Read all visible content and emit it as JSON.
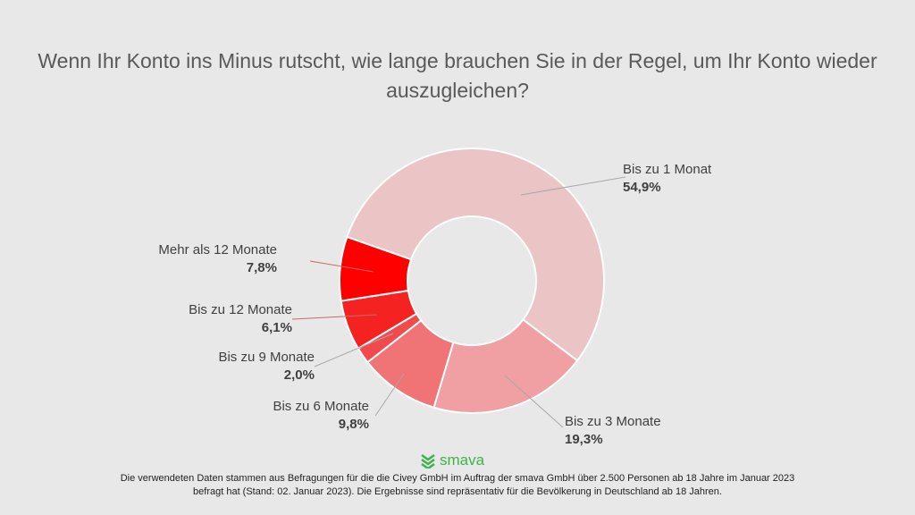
{
  "chart_data": {
    "type": "pie",
    "variant": "donut",
    "title": "Wenn Ihr Konto ins Minus rutscht, wie lange brauchen Sie in der Regel, um Ihr Konto wieder auszugleichen?",
    "categories": [
      "Bis zu 1 Monat",
      "Bis zu 3 Monate",
      "Bis zu 6 Monate",
      "Bis zu 9 Monate",
      "Bis zu 12 Monate",
      "Mehr als 12 Monate"
    ],
    "values": [
      54.9,
      19.3,
      9.8,
      2.0,
      6.1,
      7.8
    ],
    "value_labels": [
      "54,9%",
      "19,3%",
      "9,8%",
      "2,0%",
      "6,1%",
      "7,8%"
    ],
    "colors": [
      "#ebc4c5",
      "#f0a0a2",
      "#f07375",
      "#f2494c",
      "#f52222",
      "#ff0000"
    ],
    "unit": "%"
  },
  "logo": {
    "text": "smava",
    "color": "#3cb44b"
  },
  "footnote": "Die verwendeten Daten stammen aus Befragungen für die die Civey GmbH im Auftrag der smava GmbH über 2.500 Personen ab 18 Jahre im Januar 2023 befragt hat (Stand: 02. Januar 2023). Die Ergebnisse sind repräsentativ für die Bevölkerung in Deutschland ab 18 Jahren."
}
